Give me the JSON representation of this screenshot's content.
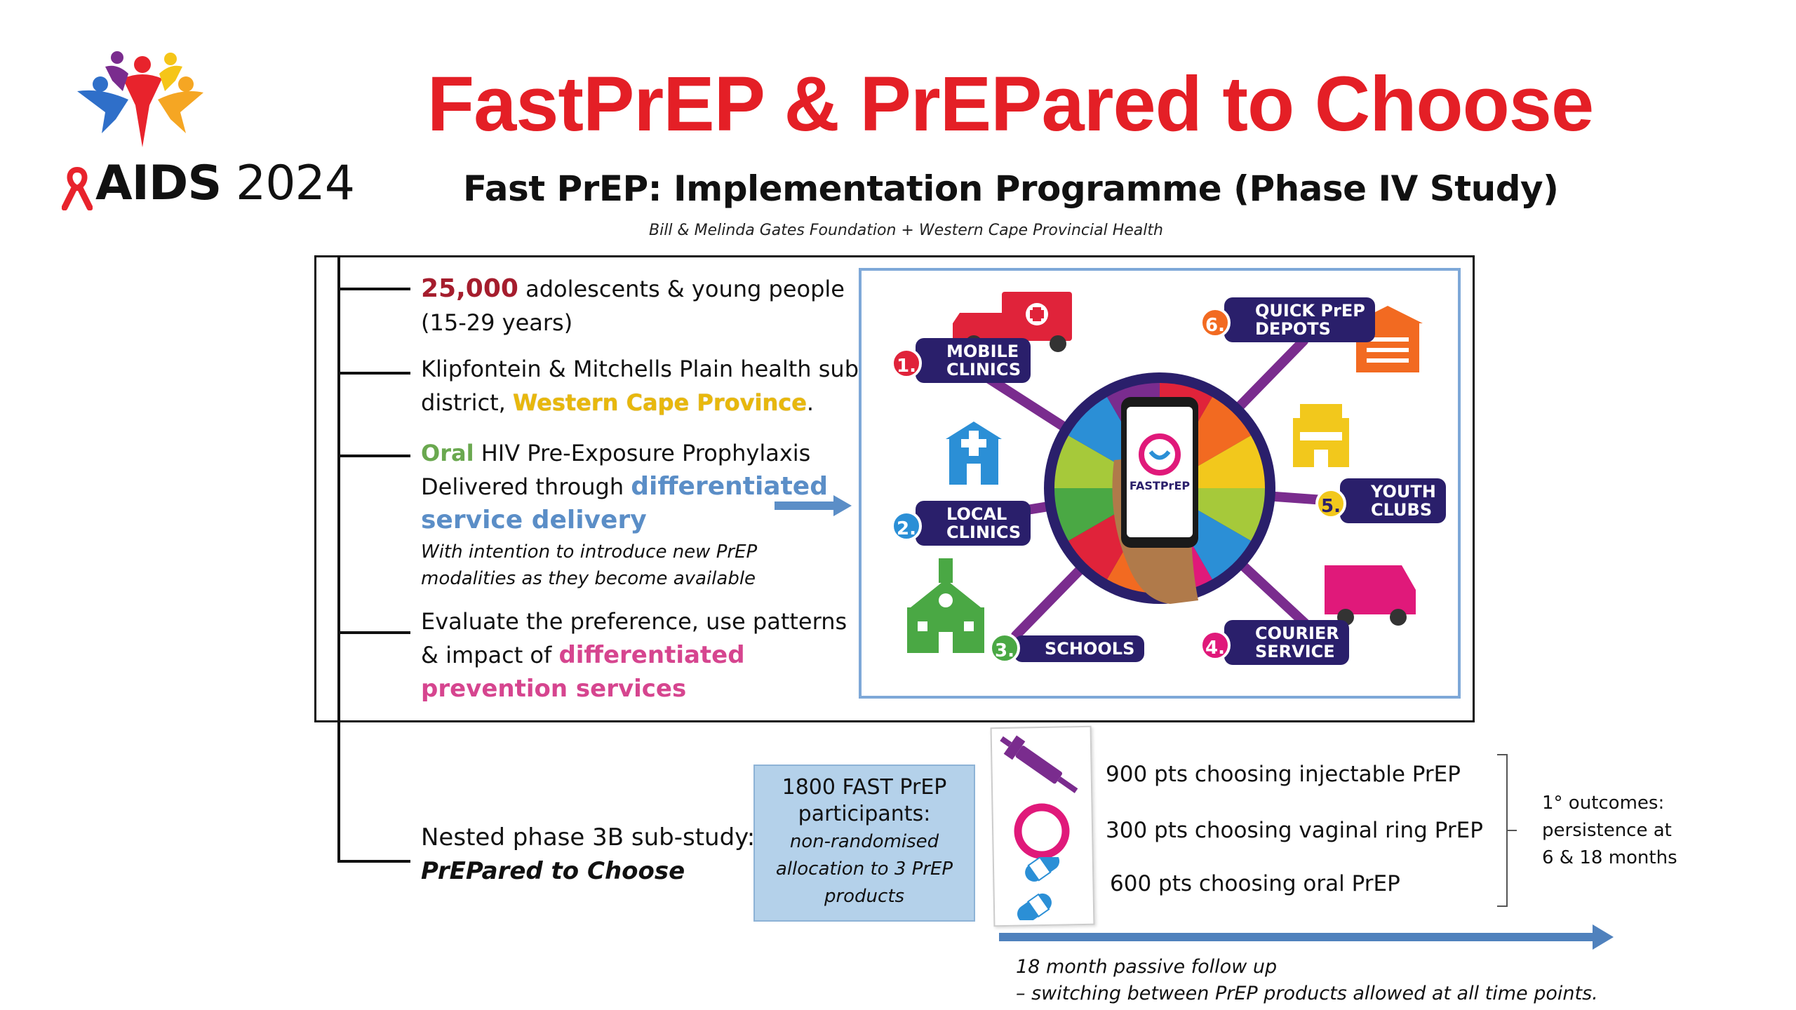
{
  "header": {
    "title": "FastPrEP & PrEPared to Choose",
    "subtitle": "Fast PrEP: Implementation Programme (Phase IV Study)",
    "funders": "Bill & Melinda Gates Foundation + Western Cape Provincial Health"
  },
  "logo": {
    "aids": "AIDS",
    "year": "2024"
  },
  "items": {
    "participants_num": "25,000",
    "participants_text": "adolescents & young people",
    "age_range": "(15-29 years)",
    "location_line1": "Klipfontein & Mitchells Plain health sub-",
    "location_pre": "district,",
    "location_province": "Western Cape Province",
    "location_end": ".",
    "oral": "Oral",
    "hiv_prep": "HIV Pre-Exposure Prophylaxis",
    "delivered_pre": "Delivered through",
    "dsd1": "differentiated",
    "dsd2": "service delivery",
    "note1": "With intention to introduce new PrEP",
    "note2": "modalities as they become available",
    "eval1": "Evaluate the preference, use patterns",
    "eval2_pre": "& impact of",
    "eval2_em": "differentiated",
    "eval3": "prevention services",
    "nested1": "Nested phase 3B sub-study:",
    "nested2": "PrEPared to Choose"
  },
  "diagram": {
    "app_name": "FASTPrEP",
    "labels": [
      {
        "num": "1.",
        "line1": "MOBILE",
        "line2": "CLINICS",
        "color": "#e0233a"
      },
      {
        "num": "2.",
        "line1": "LOCAL",
        "line2": "CLINICS",
        "color": "#2b8fd6"
      },
      {
        "num": "3.",
        "line1": "SCHOOLS",
        "line2": "",
        "color": "#4aa844"
      },
      {
        "num": "4.",
        "line1": "COURIER",
        "line2": "SERVICE",
        "color": "#e0197a"
      },
      {
        "num": "5.",
        "line1": "YOUTH",
        "line2": "CLUBS",
        "color": "#f2c81c"
      },
      {
        "num": "6.",
        "line1": "QUICK PrEP",
        "line2": "DEPOTS",
        "color": "#f26a21"
      }
    ]
  },
  "substudy": {
    "line1": "1800 FAST PrEP",
    "line2": "participants:",
    "line3": "non-randomised",
    "line4": "allocation to 3 PrEP",
    "line5": "products"
  },
  "options": [
    "900 pts choosing injectable PrEP",
    "300 pts choosing vaginal ring PrEP",
    "600 pts choosing oral PrEP"
  ],
  "outcome": {
    "line1": "1° outcomes:",
    "line2": "persistence at",
    "line3": "6 & 18 months"
  },
  "followup": {
    "line1": "18 month passive follow up",
    "line2": "– switching between PrEP products allowed at all time points."
  }
}
